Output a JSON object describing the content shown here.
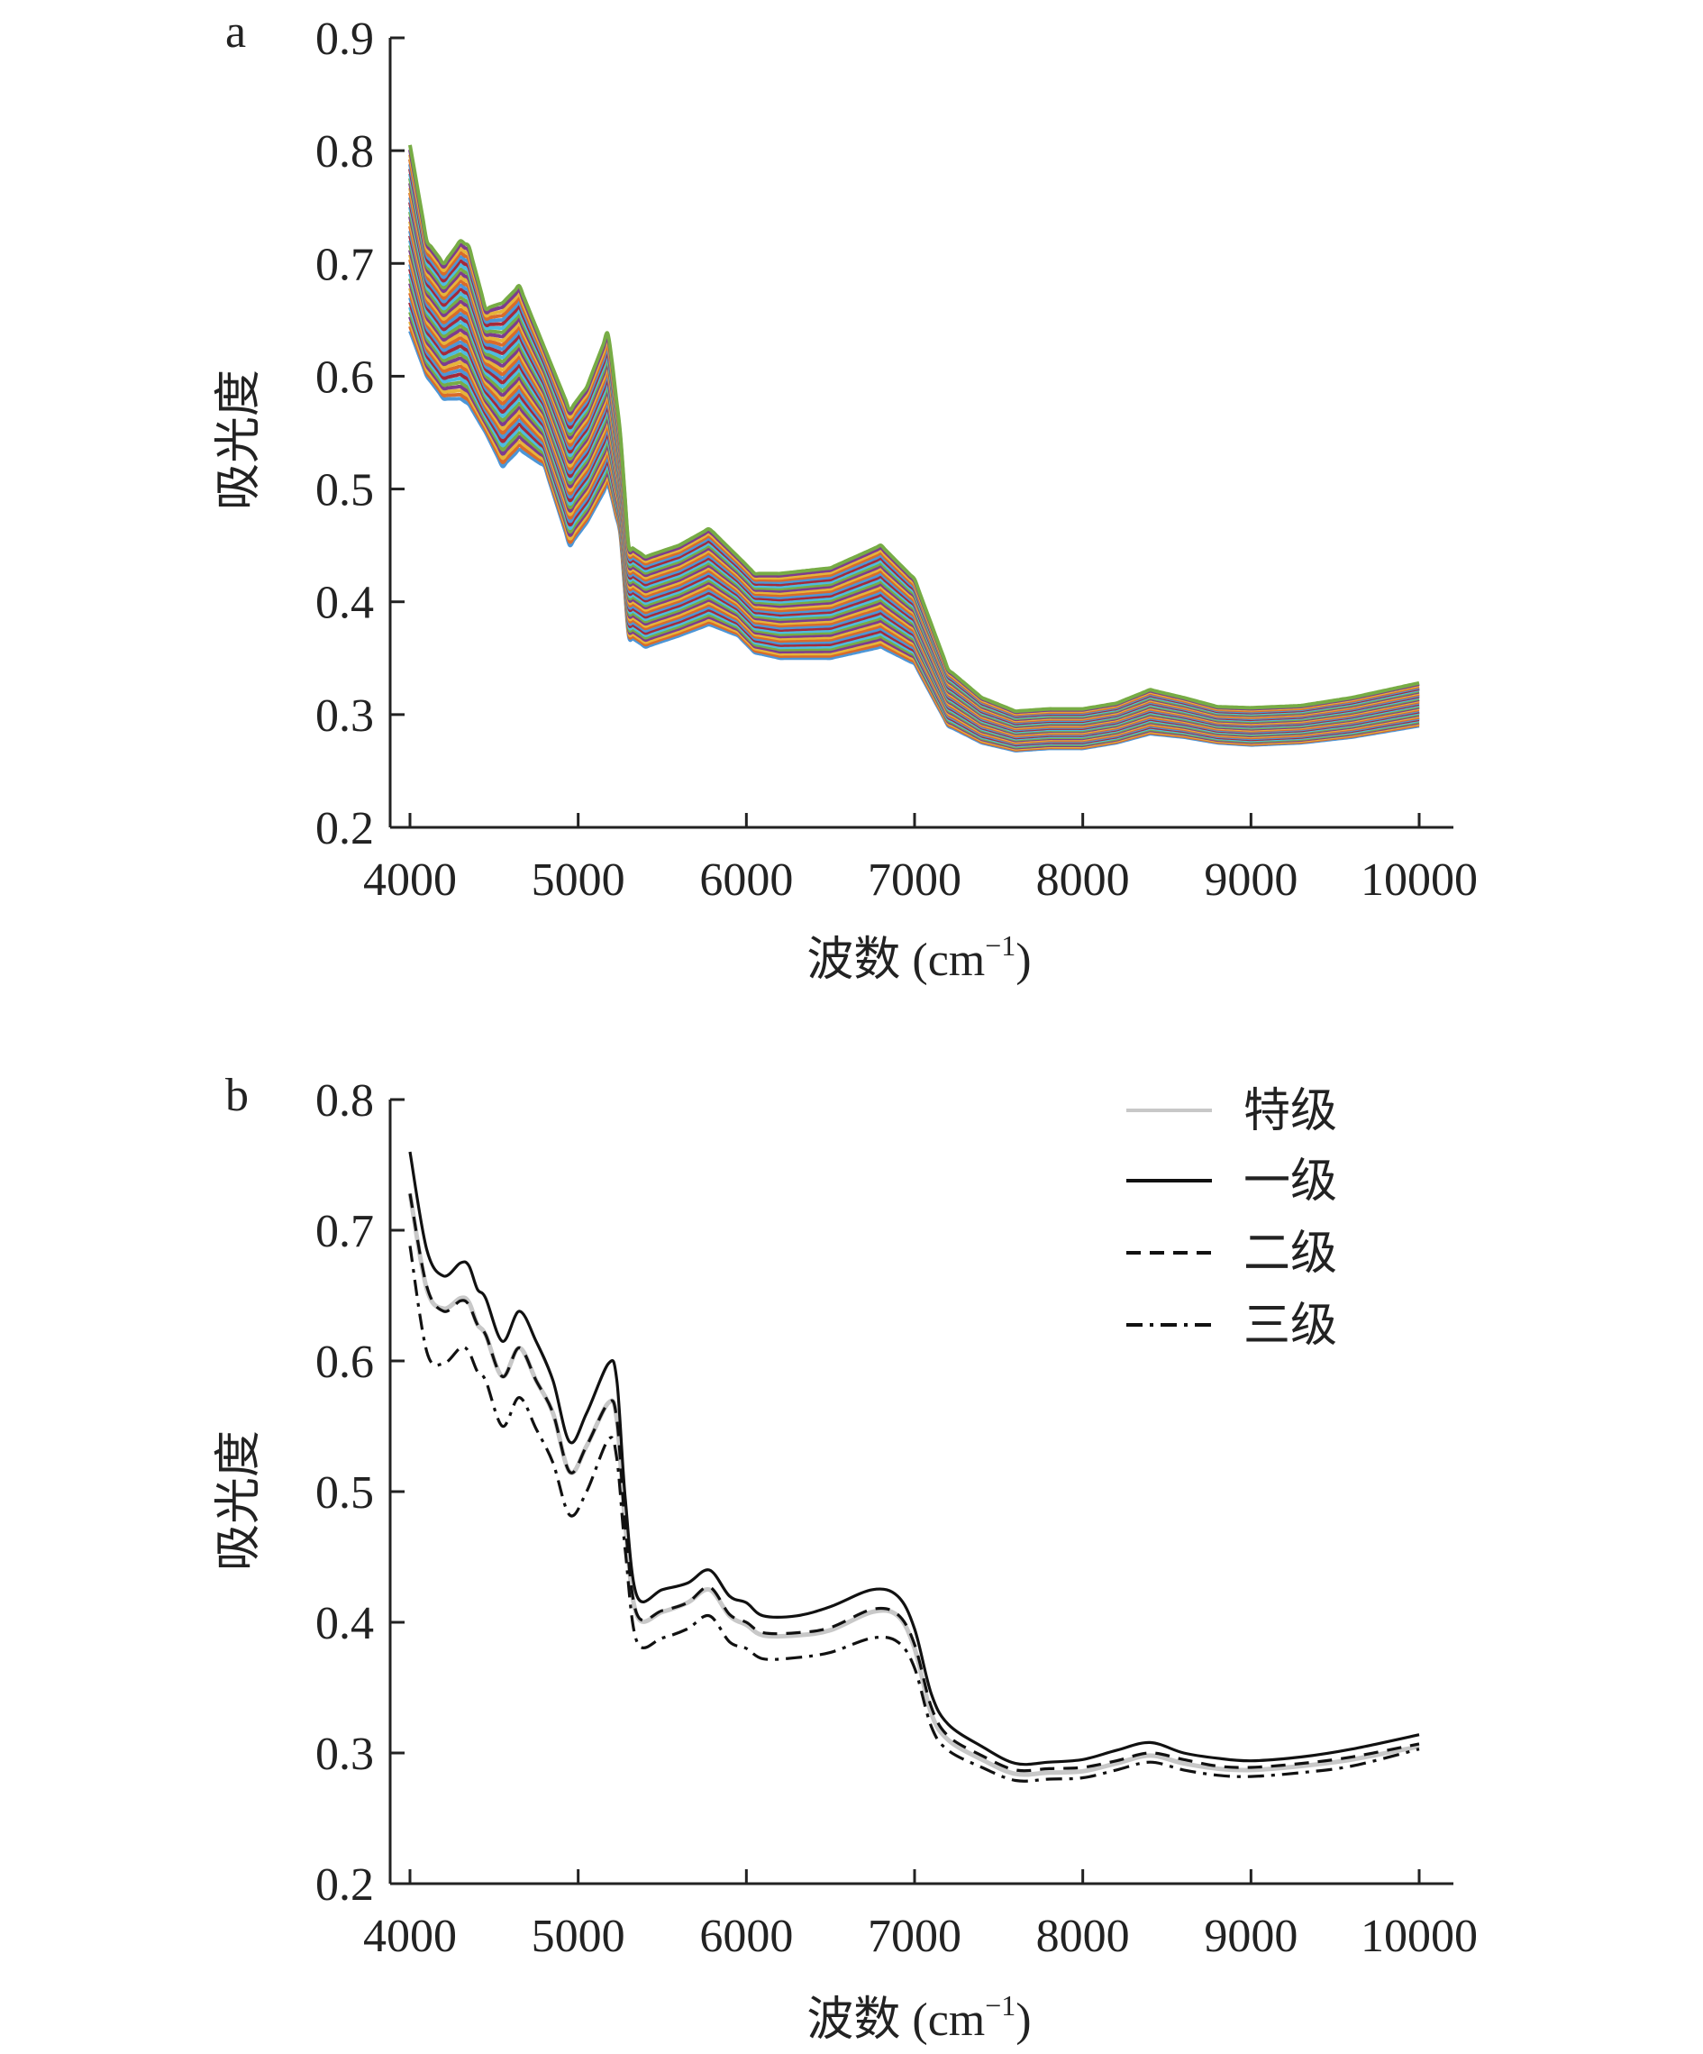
{
  "chart_data": [
    {
      "panel_label": "a",
      "type": "line",
      "xlabel": "波数 (cm",
      "xlabel_sup": "−1",
      "xlabel_close": ")",
      "ylabel": "吸光度",
      "xlim": [
        4000,
        10000
      ],
      "ylim": [
        0.2,
        0.9
      ],
      "xticks": [
        "4000",
        "5000",
        "6000",
        "7000",
        "8000",
        "9000",
        "10000"
      ],
      "yticks": [
        "0.2",
        "0.3",
        "0.4",
        "0.5",
        "0.6",
        "0.7",
        "0.8",
        "0.9"
      ],
      "legend": false,
      "spectrum_count_estimate": 40,
      "envelope": {
        "x": [
          4000,
          4100,
          4200,
          4300,
          4350,
          4450,
          4550,
          4650,
          4800,
          4950,
          5050,
          5180,
          5250,
          5300,
          5400,
          5600,
          5780,
          5950,
          6050,
          6200,
          6500,
          6800,
          7000,
          7200,
          7400,
          7600,
          7800,
          8000,
          8200,
          8400,
          8600,
          8800,
          9000,
          9300,
          9600,
          10000
        ],
        "upper": [
          0.805,
          0.72,
          0.7,
          0.72,
          0.715,
          0.66,
          0.665,
          0.68,
          0.625,
          0.57,
          0.59,
          0.64,
          0.55,
          0.45,
          0.44,
          0.45,
          0.465,
          0.44,
          0.425,
          0.425,
          0.43,
          0.45,
          0.42,
          0.34,
          0.315,
          0.303,
          0.305,
          0.305,
          0.31,
          0.322,
          0.315,
          0.307,
          0.306,
          0.308,
          0.315,
          0.328
        ],
        "lower": [
          0.64,
          0.6,
          0.58,
          0.58,
          0.575,
          0.55,
          0.52,
          0.535,
          0.52,
          0.45,
          0.47,
          0.505,
          0.46,
          0.37,
          0.36,
          0.37,
          0.38,
          0.37,
          0.355,
          0.35,
          0.35,
          0.36,
          0.345,
          0.29,
          0.275,
          0.268,
          0.27,
          0.27,
          0.275,
          0.283,
          0.28,
          0.275,
          0.273,
          0.275,
          0.28,
          0.29
        ]
      }
    },
    {
      "panel_label": "b",
      "type": "line",
      "xlabel": "波数 (cm",
      "xlabel_sup": "−1",
      "xlabel_close": ")",
      "ylabel": "吸光度",
      "xlim": [
        4000,
        10000
      ],
      "ylim": [
        0.2,
        0.8
      ],
      "xticks": [
        "4000",
        "5000",
        "6000",
        "7000",
        "8000",
        "9000",
        "10000"
      ],
      "yticks": [
        "0.2",
        "0.3",
        "0.4",
        "0.5",
        "0.6",
        "0.7",
        "0.8"
      ],
      "legend": true,
      "legend_position": "top-right",
      "x": [
        4000,
        4100,
        4200,
        4300,
        4350,
        4400,
        4450,
        4550,
        4650,
        4750,
        4850,
        4950,
        5050,
        5180,
        5230,
        5280,
        5350,
        5500,
        5650,
        5780,
        5900,
        6000,
        6100,
        6300,
        6500,
        6750,
        6900,
        7000,
        7100,
        7200,
        7400,
        7600,
        7800,
        8000,
        8200,
        8400,
        8600,
        8800,
        9000,
        9300,
        9600,
        10000
      ],
      "series": [
        {
          "name": "特级",
          "color": "#c8c8c8",
          "dash": "solid",
          "values": [
            0.728,
            0.655,
            0.64,
            0.648,
            0.645,
            0.628,
            0.62,
            0.588,
            0.61,
            0.585,
            0.56,
            0.515,
            0.535,
            0.568,
            0.555,
            0.475,
            0.405,
            0.408,
            0.415,
            0.425,
            0.405,
            0.398,
            0.39,
            0.39,
            0.394,
            0.408,
            0.405,
            0.38,
            0.33,
            0.31,
            0.295,
            0.284,
            0.285,
            0.286,
            0.292,
            0.298,
            0.292,
            0.288,
            0.287,
            0.29,
            0.295,
            0.305
          ]
        },
        {
          "name": "一级",
          "color": "#111111",
          "dash": "solid",
          "values": [
            0.76,
            0.685,
            0.665,
            0.675,
            0.673,
            0.655,
            0.648,
            0.615,
            0.638,
            0.615,
            0.585,
            0.538,
            0.56,
            0.598,
            0.585,
            0.495,
            0.42,
            0.425,
            0.43,
            0.44,
            0.42,
            0.415,
            0.405,
            0.405,
            0.412,
            0.425,
            0.42,
            0.395,
            0.345,
            0.322,
            0.305,
            0.292,
            0.293,
            0.295,
            0.302,
            0.308,
            0.3,
            0.296,
            0.294,
            0.297,
            0.303,
            0.314
          ]
        },
        {
          "name": "二级",
          "color": "#111111",
          "dash": "dashed",
          "values": [
            0.728,
            0.657,
            0.638,
            0.646,
            0.643,
            0.628,
            0.62,
            0.588,
            0.61,
            0.585,
            0.56,
            0.515,
            0.535,
            0.568,
            0.555,
            0.475,
            0.406,
            0.409,
            0.415,
            0.427,
            0.406,
            0.4,
            0.392,
            0.392,
            0.396,
            0.41,
            0.406,
            0.383,
            0.335,
            0.313,
            0.298,
            0.287,
            0.288,
            0.289,
            0.294,
            0.3,
            0.295,
            0.29,
            0.289,
            0.292,
            0.297,
            0.307
          ]
        },
        {
          "name": "三级",
          "color": "#111111",
          "dash": "dashdot",
          "values": [
            0.688,
            0.607,
            0.598,
            0.61,
            0.607,
            0.592,
            0.585,
            0.55,
            0.572,
            0.548,
            0.522,
            0.482,
            0.5,
            0.54,
            0.525,
            0.455,
            0.385,
            0.388,
            0.395,
            0.405,
            0.385,
            0.38,
            0.372,
            0.373,
            0.377,
            0.388,
            0.385,
            0.365,
            0.32,
            0.302,
            0.289,
            0.279,
            0.28,
            0.281,
            0.287,
            0.293,
            0.287,
            0.283,
            0.282,
            0.285,
            0.29,
            0.303
          ]
        }
      ]
    }
  ]
}
